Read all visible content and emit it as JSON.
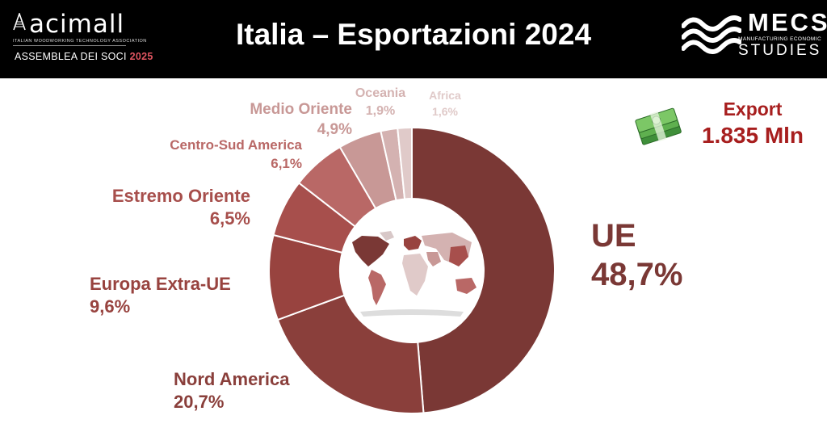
{
  "header": {
    "brand": "acimall",
    "brand_subtitle": "ITALIAN WOODWORKING TECHNOLOGY ASSOCIATION",
    "assembly_label": "ASSEMBLEA DEI SOCI",
    "assembly_year": "2025",
    "title": "Italia – Esportazioni 2024",
    "partner_brand": "MECS",
    "partner_subtitle": "MANUFACTURING ECONOMIC",
    "partner_studies": "STUDIES"
  },
  "export": {
    "title": "Export",
    "value": "1.835 Mln",
    "icon": "money-stack-icon"
  },
  "chart_data": {
    "type": "pie",
    "variant": "donut",
    "title": "Italia – Esportazioni 2024",
    "slices": [
      {
        "name": "UE",
        "label": "48,7%",
        "value": 48.7,
        "color": "#7a3835"
      },
      {
        "name": "Nord America",
        "label": "20,7%",
        "value": 20.7,
        "color": "#8a3f3b"
      },
      {
        "name": "Europa Extra-UE",
        "label": "9,6%",
        "value": 9.6,
        "color": "#98433f"
      },
      {
        "name": "Estremo Oriente",
        "label": "6,5%",
        "value": 6.5,
        "color": "#a74f4c"
      },
      {
        "name": "Centro-Sud America",
        "label": "6,1%",
        "value": 6.1,
        "color": "#b96866"
      },
      {
        "name": "Medio Oriente",
        "label": "4,9%",
        "value": 4.9,
        "color": "#c89896"
      },
      {
        "name": "Oceania",
        "label": "1,9%",
        "value": 1.9,
        "color": "#d4b2b1"
      },
      {
        "name": "Africa",
        "label": "1,6%",
        "value": 1.6,
        "color": "#e0cac9"
      }
    ],
    "center_image": "world-map-icon"
  }
}
